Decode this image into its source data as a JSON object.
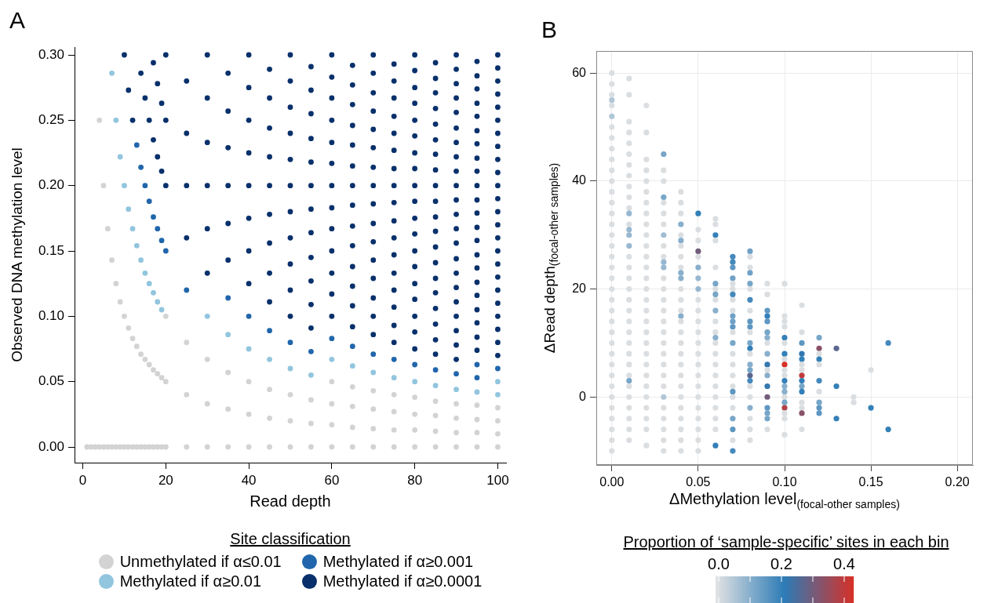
{
  "chart_data": [
    {
      "type": "scatter",
      "title": "A",
      "xlabel": "Read depth",
      "ylabel": "Observed DNA methylation level",
      "xlim": [
        -2,
        102
      ],
      "ylim": [
        -0.012,
        0.306
      ],
      "xticks": [
        0,
        20,
        40,
        60,
        80,
        100
      ],
      "yticks": [
        {
          "value": 0,
          "label": "0.00"
        },
        {
          "value": 0.05,
          "label": "0.05"
        },
        {
          "value": 0.1,
          "label": "0.10"
        },
        {
          "value": 0.15,
          "label": "0.15"
        },
        {
          "value": 0.2,
          "label": "0.20"
        },
        {
          "value": 0.25,
          "label": "0.25"
        },
        {
          "value": 0.3,
          "label": "0.30"
        }
      ],
      "grid": false,
      "legend": "bottom",
      "legend_title": "Site classification",
      "marker": "circle",
      "series": [
        {
          "name": "Unmethylated if α≤0.01",
          "color": "#d3d3d3",
          "x": [
            1,
            2,
            3,
            4,
            4,
            5,
            5,
            6,
            6,
            7,
            7,
            8,
            8,
            9,
            9,
            10,
            10,
            11,
            11,
            12,
            12,
            13,
            13,
            14,
            14,
            15,
            15,
            16,
            16,
            17,
            17,
            18,
            18,
            19,
            19,
            20,
            20,
            20,
            25,
            25,
            25,
            30,
            30,
            30,
            35,
            35,
            35,
            40,
            40,
            40,
            45,
            45,
            45,
            50,
            50,
            50,
            55,
            55,
            55,
            60,
            60,
            60,
            60,
            65,
            65,
            65,
            65,
            70,
            70,
            70,
            70,
            75,
            75,
            75,
            75,
            80,
            80,
            80,
            80,
            85,
            85,
            85,
            85,
            90,
            90,
            90,
            90,
            95,
            95,
            95,
            95,
            100,
            100,
            100,
            100
          ],
          "values": [
            0,
            0,
            0,
            0,
            0.25,
            0,
            0.2,
            0,
            0.167,
            0,
            0.143,
            0,
            0.125,
            0,
            0.111,
            0,
            0.1,
            0,
            0.091,
            0,
            0.083,
            0,
            0.077,
            0,
            0.071,
            0,
            0.067,
            0,
            0.063,
            0,
            0.059,
            0,
            0.056,
            0,
            0.053,
            0,
            0.05,
            0.1,
            0,
            0.04,
            0.08,
            0,
            0.033,
            0.067,
            0,
            0.029,
            0.057,
            0,
            0.025,
            0.05,
            0,
            0.022,
            0.044,
            0,
            0.02,
            0.04,
            0,
            0.018,
            0.036,
            0,
            0.017,
            0.033,
            0.05,
            0,
            0.015,
            0.031,
            0.046,
            0,
            0.014,
            0.029,
            0.043,
            0,
            0.013,
            0.027,
            0.04,
            0,
            0.013,
            0.025,
            0.038,
            0,
            0.012,
            0.024,
            0.035,
            0,
            0.011,
            0.022,
            0.033,
            0,
            0.011,
            0.021,
            0.032,
            0,
            0.01,
            0.02,
            0.03
          ]
        },
        {
          "name": "Methylated if α≥0.01",
          "color": "#92c5de",
          "x": [
            7,
            8,
            9,
            10,
            11,
            12,
            13,
            14,
            15,
            16,
            17,
            18,
            19,
            30,
            35,
            40,
            45,
            50,
            55,
            60,
            65,
            70,
            75,
            80,
            85,
            90,
            95,
            100,
            100
          ],
          "values": [
            0.286,
            0.25,
            0.222,
            0.2,
            0.182,
            0.167,
            0.154,
            0.143,
            0.133,
            0.125,
            0.118,
            0.111,
            0.105,
            0.1,
            0.086,
            0.075,
            0.067,
            0.06,
            0.055,
            0.067,
            0.062,
            0.057,
            0.053,
            0.05,
            0.047,
            0.044,
            0.042,
            0.04,
            0.05
          ]
        },
        {
          "name": "Methylated if α≥0.001",
          "color": "#2166ac",
          "x": [
            13,
            14,
            15,
            16,
            17,
            18,
            19,
            20,
            25,
            35,
            40,
            45,
            50,
            55,
            60,
            65,
            70,
            75,
            80,
            85,
            90,
            95,
            95,
            100
          ],
          "values": [
            0.231,
            0.214,
            0.2,
            0.188,
            0.176,
            0.167,
            0.158,
            0.15,
            0.12,
            0.114,
            0.1,
            0.089,
            0.08,
            0.073,
            0.083,
            0.077,
            0.071,
            0.067,
            0.063,
            0.059,
            0.056,
            0.053,
            0.063,
            0.06
          ]
        },
        {
          "name": "Methylated if α≥0.0001",
          "color": "#08306b",
          "x": [
            10,
            11,
            12,
            14,
            15,
            16,
            17,
            17,
            18,
            18,
            19,
            19,
            20,
            20,
            20,
            25,
            25,
            25,
            25,
            30,
            30,
            30,
            30,
            30,
            30,
            35,
            35,
            35,
            35,
            35,
            35,
            40,
            40,
            40,
            40,
            40,
            40,
            40,
            40,
            45,
            45,
            45,
            45,
            45,
            45,
            45,
            45,
            45,
            50,
            50,
            50,
            50,
            50,
            50,
            50,
            50,
            50,
            50,
            50,
            55,
            55,
            55,
            55,
            55,
            55,
            55,
            55,
            55,
            55,
            55,
            55,
            60,
            60,
            60,
            60,
            60,
            60,
            60,
            60,
            60,
            60,
            60,
            60,
            60,
            65,
            65,
            65,
            65,
            65,
            65,
            65,
            65,
            65,
            65,
            65,
            65,
            65,
            65,
            70,
            70,
            70,
            70,
            70,
            70,
            70,
            70,
            70,
            70,
            70,
            70,
            70,
            70,
            70,
            70,
            75,
            75,
            75,
            75,
            75,
            75,
            75,
            75,
            75,
            75,
            75,
            75,
            75,
            75,
            75,
            75,
            75,
            80,
            80,
            80,
            80,
            80,
            80,
            80,
            80,
            80,
            80,
            80,
            80,
            80,
            80,
            80,
            80,
            80,
            80,
            80,
            85,
            85,
            85,
            85,
            85,
            85,
            85,
            85,
            85,
            85,
            85,
            85,
            85,
            85,
            85,
            85,
            85,
            85,
            85,
            85,
            90,
            90,
            90,
            90,
            90,
            90,
            90,
            90,
            90,
            90,
            90,
            90,
            90,
            90,
            90,
            90,
            90,
            90,
            90,
            90,
            90,
            90,
            95,
            95,
            95,
            95,
            95,
            95,
            95,
            95,
            95,
            95,
            95,
            95,
            95,
            95,
            95,
            95,
            95,
            95,
            95,
            95,
            95,
            95,
            100,
            100,
            100,
            100,
            100,
            100,
            100,
            100,
            100,
            100,
            100,
            100,
            100,
            100,
            100,
            100,
            100,
            100,
            100,
            100,
            100,
            100,
            100,
            100
          ],
          "values": [
            0.3,
            0.273,
            0.25,
            0.286,
            0.267,
            0.25,
            0.235,
            0.294,
            0.222,
            0.278,
            0.211,
            0.263,
            0.2,
            0.25,
            0.3,
            0.16,
            0.2,
            0.24,
            0.28,
            0.133,
            0.167,
            0.2,
            0.233,
            0.267,
            0.3,
            0.143,
            0.171,
            0.2,
            0.229,
            0.257,
            0.286,
            0.125,
            0.15,
            0.175,
            0.2,
            0.225,
            0.25,
            0.275,
            0.3,
            0.111,
            0.133,
            0.156,
            0.178,
            0.2,
            0.222,
            0.244,
            0.267,
            0.289,
            0.1,
            0.12,
            0.14,
            0.16,
            0.18,
            0.2,
            0.22,
            0.24,
            0.26,
            0.28,
            0.3,
            0.091,
            0.109,
            0.127,
            0.145,
            0.164,
            0.182,
            0.2,
            0.218,
            0.236,
            0.255,
            0.273,
            0.291,
            0.1,
            0.117,
            0.133,
            0.15,
            0.167,
            0.183,
            0.2,
            0.217,
            0.233,
            0.25,
            0.267,
            0.283,
            0.3,
            0.092,
            0.108,
            0.123,
            0.138,
            0.154,
            0.169,
            0.185,
            0.2,
            0.215,
            0.231,
            0.246,
            0.262,
            0.277,
            0.292,
            0.086,
            0.1,
            0.114,
            0.129,
            0.143,
            0.157,
            0.171,
            0.186,
            0.2,
            0.214,
            0.229,
            0.243,
            0.257,
            0.271,
            0.286,
            0.3,
            0.08,
            0.093,
            0.107,
            0.12,
            0.133,
            0.147,
            0.16,
            0.173,
            0.187,
            0.2,
            0.213,
            0.227,
            0.24,
            0.253,
            0.267,
            0.28,
            0.293,
            0.075,
            0.088,
            0.1,
            0.113,
            0.125,
            0.138,
            0.15,
            0.163,
            0.175,
            0.188,
            0.2,
            0.213,
            0.225,
            0.238,
            0.25,
            0.263,
            0.275,
            0.288,
            0.3,
            0.071,
            0.082,
            0.094,
            0.106,
            0.118,
            0.129,
            0.141,
            0.153,
            0.165,
            0.176,
            0.188,
            0.2,
            0.212,
            0.224,
            0.235,
            0.247,
            0.259,
            0.271,
            0.282,
            0.294,
            0.067,
            0.078,
            0.089,
            0.1,
            0.111,
            0.122,
            0.133,
            0.144,
            0.156,
            0.167,
            0.178,
            0.189,
            0.2,
            0.211,
            0.222,
            0.233,
            0.244,
            0.256,
            0.267,
            0.278,
            0.289,
            0.3,
            0.074,
            0.084,
            0.095,
            0.105,
            0.116,
            0.126,
            0.137,
            0.147,
            0.158,
            0.168,
            0.179,
            0.189,
            0.2,
            0.211,
            0.221,
            0.232,
            0.242,
            0.253,
            0.263,
            0.274,
            0.284,
            0.295,
            0.07,
            0.08,
            0.09,
            0.1,
            0.11,
            0.12,
            0.13,
            0.14,
            0.15,
            0.16,
            0.17,
            0.18,
            0.19,
            0.2,
            0.21,
            0.22,
            0.23,
            0.24,
            0.25,
            0.26,
            0.27,
            0.28,
            0.29,
            0.3
          ]
        }
      ]
    },
    {
      "type": "scatter",
      "title": "B",
      "xlabel": "ΔMethylation level$_{(focal-other samples)}$",
      "ylabel": "ΔRead depth$_{(focal-other samples)}$",
      "xlim": [
        -0.009,
        0.209
      ],
      "ylim": [
        -12.6,
        64.1
      ],
      "xticks": [
        {
          "value": 0,
          "label": "0.00"
        },
        {
          "value": 0.05,
          "label": "0.05"
        },
        {
          "value": 0.1,
          "label": "0.10"
        },
        {
          "value": 0.15,
          "label": "0.15"
        },
        {
          "value": 0.2,
          "label": "0.20"
        }
      ],
      "yticks": [
        0,
        20,
        40,
        60
      ],
      "grid": true,
      "marker": "circle",
      "clabel": "Proportion of ‘sample-specific’ sites in each bin",
      "clim": [
        -0.01,
        0.43
      ],
      "cticks": [
        {
          "value": 0,
          "label": "0.0"
        },
        {
          "value": 0.1,
          "label": null
        },
        {
          "value": 0.2,
          "label": "0.2"
        },
        {
          "value": 0.3,
          "label": null
        },
        {
          "value": 0.4,
          "label": "0.4"
        }
      ],
      "series": [
        {
          "x": [
            0,
            0,
            0,
            0,
            0,
            0,
            0,
            0,
            0,
            0,
            0,
            0,
            0,
            0,
            0,
            0,
            0,
            0,
            0,
            0,
            0,
            0,
            0,
            0,
            0,
            0,
            0,
            0,
            0,
            0,
            0,
            0,
            0,
            0,
            0,
            0,
            0,
            0.01,
            0.01,
            0.01,
            0.01,
            0.01,
            0.01,
            0.01,
            0.01,
            0.01,
            0.01,
            0.01,
            0.01,
            0.01,
            0.01,
            0.01,
            0.01,
            0.01,
            0.01,
            0.01,
            0.01,
            0.01,
            0.01,
            0.01,
            0.01,
            0.01,
            0.01,
            0.01,
            0.01,
            0.01,
            0.01,
            0.01,
            0.01,
            0.01,
            0.01,
            0.01,
            0.02,
            0.02,
            0.02,
            0.02,
            0.02,
            0.02,
            0.02,
            0.02,
            0.02,
            0.02,
            0.02,
            0.02,
            0.02,
            0.02,
            0.02,
            0.02,
            0.02,
            0.02,
            0.02,
            0.02,
            0.02,
            0.02,
            0.02,
            0.02,
            0.02,
            0.02,
            0.02,
            0.02,
            0.02,
            0.03,
            0.03,
            0.03,
            0.03,
            0.03,
            0.03,
            0.03,
            0.03,
            0.03,
            0.03,
            0.03,
            0.03,
            0.03,
            0.03,
            0.03,
            0.03,
            0.03,
            0.03,
            0.03,
            0.03,
            0.03,
            0.03,
            0.03,
            0.03,
            0.03,
            0.03,
            0.03,
            0.03,
            0.03,
            0.04,
            0.04,
            0.04,
            0.04,
            0.04,
            0.04,
            0.04,
            0.04,
            0.04,
            0.04,
            0.04,
            0.04,
            0.04,
            0.04,
            0.04,
            0.04,
            0.04,
            0.04,
            0.04,
            0.04,
            0.04,
            0.04,
            0.04,
            0.04,
            0.04,
            0.04,
            0.04,
            0.04,
            0.05,
            0.05,
            0.05,
            0.05,
            0.05,
            0.05,
            0.05,
            0.05,
            0.05,
            0.05,
            0.05,
            0.05,
            0.05,
            0.05,
            0.05,
            0.05,
            0.05,
            0.05,
            0.05,
            0.05,
            0.05,
            0.05,
            0.05,
            0.06,
            0.06,
            0.06,
            0.06,
            0.06,
            0.06,
            0.06,
            0.06,
            0.06,
            0.06,
            0.06,
            0.06,
            0.06,
            0.06,
            0.06,
            0.06,
            0.06,
            0.06,
            0.06,
            0.06,
            0.06,
            0.06,
            0.06,
            0.07,
            0.07,
            0.07,
            0.07,
            0.07,
            0.07,
            0.07,
            0.07,
            0.07,
            0.07,
            0.07,
            0.07,
            0.07,
            0.07,
            0.07,
            0.07,
            0.07,
            0.07,
            0.07,
            0.07,
            0.07,
            0.07,
            0.07,
            0.07,
            0.07,
            0.08,
            0.08,
            0.08,
            0.08,
            0.08,
            0.08,
            0.08,
            0.08,
            0.08,
            0.08,
            0.08,
            0.08,
            0.08,
            0.08,
            0.08,
            0.08,
            0.08,
            0.08,
            0.08,
            0.08,
            0.08,
            0.08,
            0.08,
            0.08,
            0.09,
            0.09,
            0.09,
            0.09,
            0.09,
            0.09,
            0.09,
            0.09,
            0.09,
            0.09,
            0.09,
            0.09,
            0.09,
            0.09,
            0.09,
            0.09,
            0.09,
            0.09,
            0.1,
            0.1,
            0.1,
            0.1,
            0.1,
            0.1,
            0.1,
            0.1,
            0.1,
            0.1,
            0.1,
            0.1,
            0.1,
            0.1,
            0.1,
            0.1,
            0.1,
            0.1,
            0.1,
            0.1,
            0.11,
            0.11,
            0.11,
            0.11,
            0.11,
            0.11,
            0.11,
            0.11,
            0.11,
            0.11,
            0.11,
            0.11,
            0.11,
            0.11,
            0.11,
            0.12,
            0.12,
            0.12,
            0.12,
            0.12,
            0.12,
            0.12,
            0.12,
            0.12,
            0.12,
            0.13,
            0.13,
            0.13,
            0.14,
            0.14,
            0.15,
            0.15,
            0.16,
            0.16
          ],
          "values": [
            60,
            58,
            56,
            55,
            54,
            52,
            50,
            48,
            46,
            44,
            42,
            40,
            38,
            36,
            34,
            32,
            30,
            28,
            26,
            24,
            22,
            20,
            18,
            16,
            14,
            12,
            10,
            8,
            6,
            4,
            2,
            0,
            -2,
            -4,
            -6,
            -8,
            -10,
            59,
            56,
            51,
            49,
            47,
            45,
            43,
            41,
            39,
            37,
            35,
            34,
            32,
            31,
            30,
            28,
            26,
            24,
            22,
            20,
            18,
            16,
            14,
            12,
            10,
            8,
            6,
            4,
            3,
            2,
            0,
            -2,
            -4,
            -6,
            -8,
            54,
            49,
            44,
            42,
            40,
            38,
            36,
            34,
            32,
            30,
            28,
            26,
            24,
            22,
            20,
            18,
            16,
            14,
            12,
            10,
            8,
            6,
            4,
            2,
            0,
            -2,
            -4,
            -6,
            -9,
            45,
            42,
            40,
            37,
            36,
            34,
            32,
            30,
            28,
            26,
            25,
            24,
            22,
            20,
            18,
            16,
            14,
            12,
            10,
            8,
            6,
            4,
            2,
            0,
            -2,
            -4,
            -6,
            -8,
            -10,
            38,
            36,
            34,
            32,
            30,
            29,
            28,
            26,
            24,
            23,
            22,
            20,
            18,
            16,
            15,
            14,
            12,
            10,
            8,
            6,
            4,
            2,
            0,
            -2,
            -4,
            -6,
            -8,
            -10,
            34,
            31,
            29,
            27,
            26,
            24,
            22,
            20,
            18,
            16,
            14,
            12,
            10,
            8,
            6,
            4,
            2,
            0,
            -2,
            -4,
            -6,
            -8,
            -10,
            33,
            32,
            30,
            29,
            24,
            21,
            20,
            19,
            18,
            16,
            14,
            12,
            11,
            10,
            8,
            6,
            4,
            2,
            0,
            -2,
            -4,
            -6,
            -9,
            26,
            25,
            24,
            22,
            21,
            20,
            19,
            18,
            16,
            15,
            14,
            13,
            12,
            10,
            8,
            6,
            4,
            2,
            1,
            0,
            -2,
            -4,
            -6,
            -8,
            -10,
            27,
            26,
            24,
            23,
            21,
            20,
            18,
            16,
            14,
            13,
            12,
            10,
            9,
            8,
            6,
            5,
            4,
            3,
            2,
            0,
            -2,
            -4,
            -6,
            -8,
            21,
            19,
            16,
            15,
            14,
            12,
            11,
            10,
            8,
            6,
            5,
            4,
            2,
            0,
            -2,
            -3,
            -4,
            -6,
            21,
            15,
            14,
            13,
            11,
            10,
            8,
            7,
            6,
            5,
            4,
            3,
            2,
            1,
            0,
            -1,
            -2,
            -3,
            -4,
            -7,
            17,
            12,
            10,
            8,
            7,
            6,
            5,
            4,
            3,
            2,
            1,
            -1,
            -2,
            -3,
            -6,
            11,
            9,
            8,
            7,
            6,
            3,
            1,
            -1,
            -2,
            -3,
            9,
            2,
            -4,
            0,
            -1,
            5,
            -2,
            10,
            -6
          ],
          "cvalues": [
            0,
            0,
            0,
            0.05,
            0,
            0.05,
            0,
            0,
            0,
            0,
            0,
            0,
            0,
            0,
            0,
            0,
            0,
            0,
            0,
            0,
            0,
            0,
            0,
            0,
            0,
            0,
            0,
            0,
            0,
            0,
            0,
            0,
            0,
            0,
            0,
            0,
            0,
            0,
            0,
            0,
            0,
            0,
            0,
            0,
            0,
            0,
            0,
            0,
            0.08,
            0,
            0.08,
            0.08,
            0.08,
            0,
            0,
            0,
            0,
            0,
            0,
            0,
            0,
            0,
            0,
            0,
            0,
            0.12,
            0,
            0,
            0,
            0,
            0,
            0,
            0,
            0,
            0,
            0,
            0,
            0,
            0,
            0,
            0,
            0,
            0,
            0,
            0,
            0,
            0,
            0,
            0,
            0,
            0,
            0,
            0,
            0,
            0,
            0,
            0,
            0,
            0,
            0,
            0,
            0.12,
            0,
            0,
            0.12,
            0,
            0,
            0,
            0.07,
            0,
            0,
            0.08,
            0.08,
            0,
            0,
            0,
            0,
            0,
            0,
            0,
            0,
            0,
            0,
            0,
            0.05,
            0,
            0,
            0,
            0,
            0,
            0,
            0,
            0,
            0.1,
            0,
            0.1,
            0,
            0,
            0,
            0.1,
            0.1,
            0,
            0,
            0,
            0.1,
            0,
            0,
            0,
            0,
            0,
            0,
            0,
            0,
            0,
            0,
            0,
            0,
            0,
            0.2,
            0,
            0,
            0.3,
            0,
            0.1,
            0.08,
            0.08,
            0,
            0,
            0,
            0,
            0,
            0,
            0,
            0,
            0,
            0,
            0,
            0,
            0,
            0,
            0,
            0,
            0,
            0.2,
            0,
            0,
            0.12,
            0,
            0.12,
            0,
            0.1,
            0,
            0,
            0.1,
            0,
            0,
            0,
            0,
            0,
            0,
            0,
            0,
            0,
            0.2,
            0.18,
            0.18,
            0.15,
            0.13,
            0,
            0,
            0.18,
            0,
            0,
            0.13,
            0.13,
            0.15,
            0,
            0.12,
            0,
            0,
            0,
            0,
            0.15,
            0,
            0,
            0.12,
            0.15,
            0,
            0.18,
            0.13,
            0,
            0,
            0.13,
            0.12,
            0,
            0.18,
            0,
            0.15,
            0.15,
            0,
            0.12,
            0.2,
            0,
            0.1,
            0.12,
            0.27,
            0.18,
            0,
            0,
            0.1,
            0,
            0,
            0,
            0,
            0,
            0.15,
            0.2,
            0.15,
            0.12,
            0.1,
            0,
            0.1,
            0.22,
            0,
            0.1,
            0.22,
            0.3,
            0.15,
            0.12,
            0.12,
            0,
            0,
            0,
            0,
            0,
            0.2,
            0,
            0.2,
            0,
            0.43,
            0,
            0,
            0.2,
            0.1,
            0.1,
            0,
            0.12,
            0.38,
            0,
            0,
            0,
            0,
            0,
            0.15,
            0.22,
            0.2,
            0,
            0,
            0.4,
            0.2,
            0.12,
            0.2,
            0,
            0,
            0.33,
            0,
            0.12,
            0.33,
            0,
            0.2,
            0,
            0.18,
            0,
            0.12,
            0.15,
            0.15,
            0.27,
            0.2,
            0.2,
            0,
            0,
            0,
            0.2,
            0.18,
            0.2
          ]
        }
      ]
    }
  ]
}
